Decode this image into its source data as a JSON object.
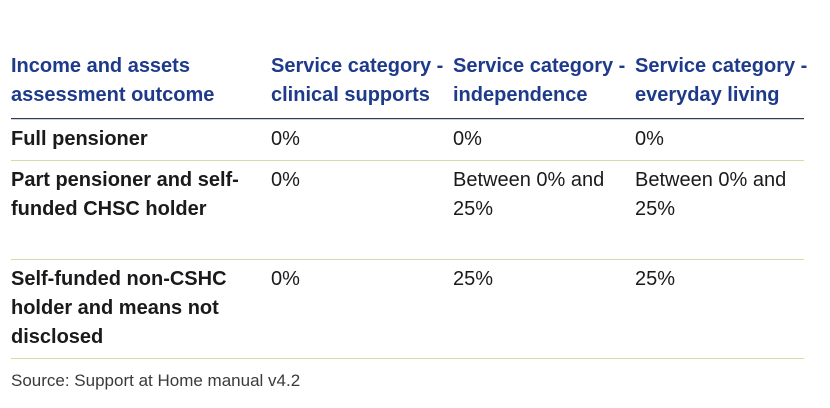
{
  "headers": [
    "Income and assets assessment outcome",
    "Service category - clinical supports",
    "Service category - independence",
    "Service category - everyday living"
  ],
  "rows": [
    [
      "Full pensioner",
      "0%",
      "0%",
      "0%"
    ],
    [
      "Part pensioner and self-funded CHSC holder",
      "0%",
      "Between 0% and 25%",
      "Between 0% and 25%"
    ],
    [
      "Self-funded non-CSHC holder and means not disclosed",
      "0%",
      "25%",
      "25%"
    ]
  ],
  "source": "Source: Support at Home manual v4.2",
  "colors": {
    "header_text": "#1e3a8a",
    "row_divider": "#d8d8a8"
  }
}
